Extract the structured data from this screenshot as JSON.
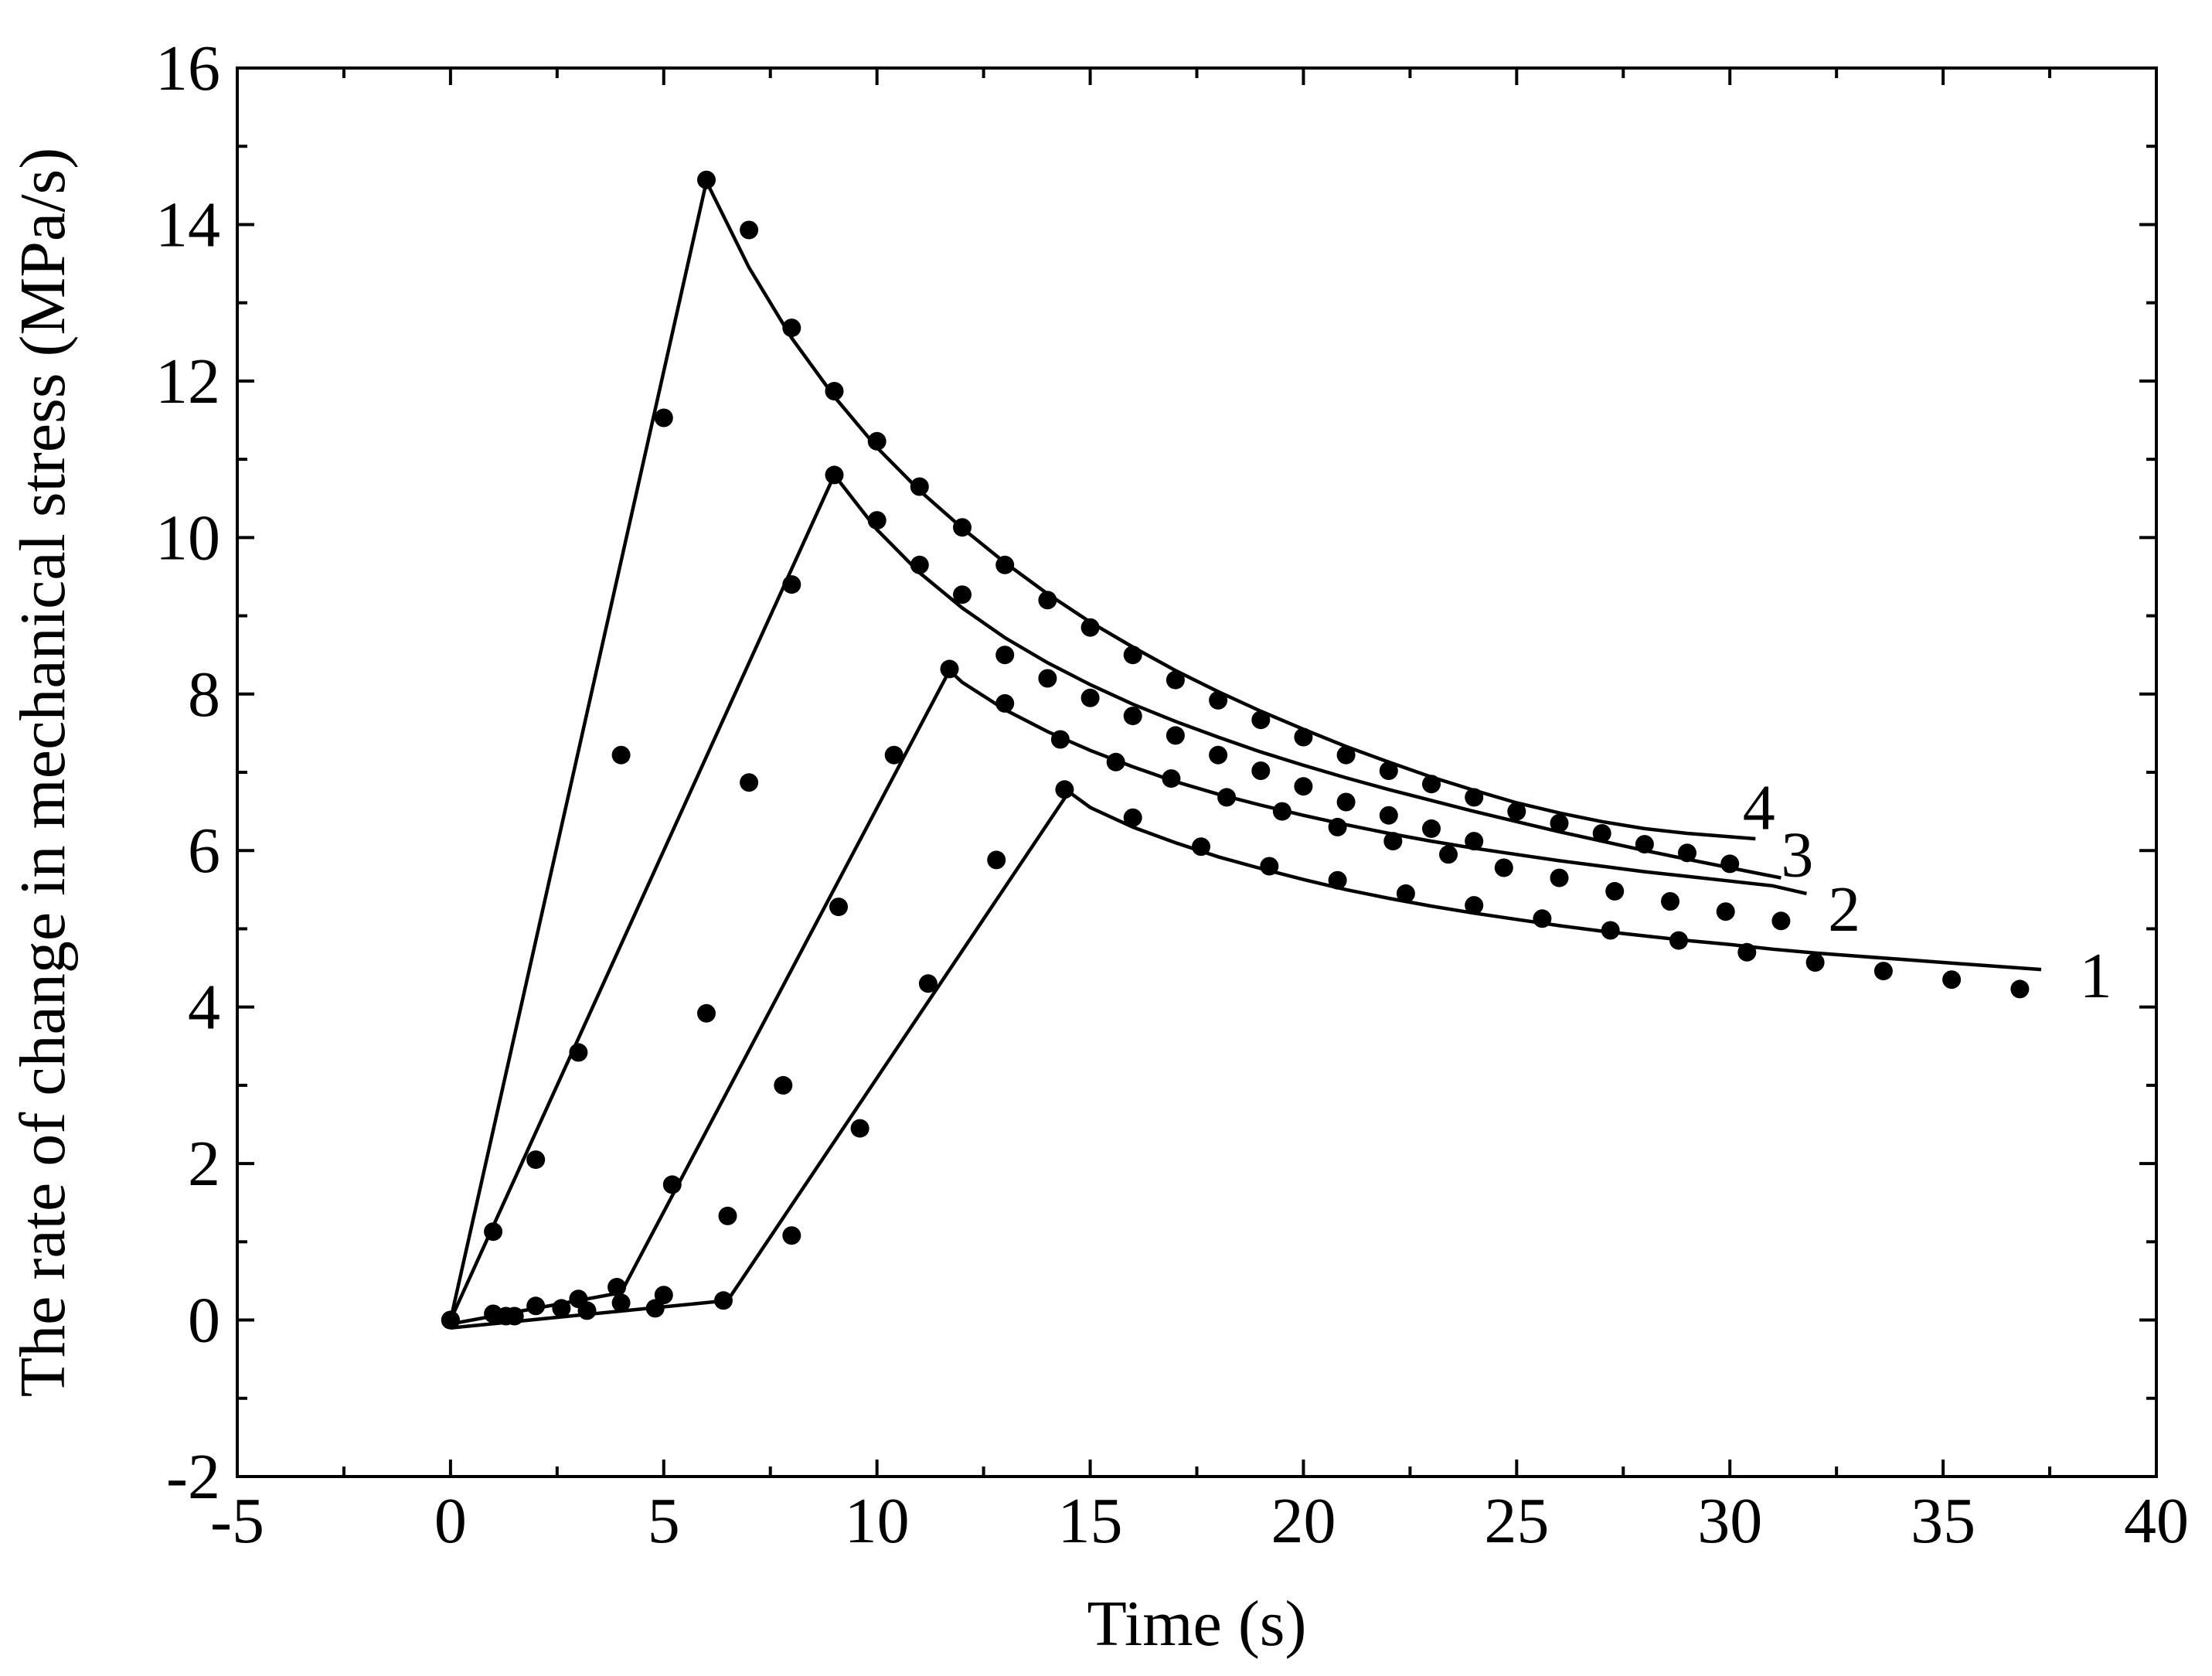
{
  "chart_data": {
    "type": "line",
    "title": "",
    "xlabel": "Time (s)",
    "ylabel": "The rate of change in mechanical stress (MPa/s)",
    "xlim": [
      -5,
      40
    ],
    "ylim": [
      -2,
      16
    ],
    "xticks": [
      "-5",
      "0",
      "5",
      "10",
      "15",
      "20",
      "25",
      "30",
      "35",
      "40"
    ],
    "yticks": [
      "-2",
      "0",
      "2",
      "4",
      "6",
      "8",
      "10",
      "12",
      "14",
      "16"
    ],
    "grid": false,
    "legend": "none",
    "series": [
      {
        "label": "1",
        "line": [
          [
            0,
            -0.1
          ],
          [
            6.5,
            0.25
          ],
          [
            14.5,
            6.75
          ],
          [
            15,
            6.55
          ],
          [
            16,
            6.3
          ],
          [
            17,
            6.1
          ],
          [
            18,
            5.92
          ],
          [
            19,
            5.77
          ],
          [
            20,
            5.63
          ],
          [
            21,
            5.5
          ],
          [
            22,
            5.39
          ],
          [
            23,
            5.29
          ],
          [
            24,
            5.2
          ],
          [
            25,
            5.12
          ],
          [
            26,
            5.04
          ],
          [
            27,
            4.97
          ],
          [
            28,
            4.91
          ],
          [
            29,
            4.85
          ],
          [
            30,
            4.8
          ],
          [
            31,
            4.74
          ],
          [
            32,
            4.69
          ],
          [
            33,
            4.65
          ],
          [
            34,
            4.61
          ],
          [
            35,
            4.57
          ],
          [
            36,
            4.53
          ],
          [
            37.3,
            4.48
          ]
        ],
        "points": [
          [
            0,
            0
          ],
          [
            1.5,
            0.05
          ],
          [
            3.2,
            0.12
          ],
          [
            4.8,
            0.15
          ],
          [
            6.4,
            0.25
          ],
          [
            8,
            1.08
          ],
          [
            9.6,
            2.45
          ],
          [
            11.2,
            4.3
          ],
          [
            12.8,
            5.88
          ],
          [
            14.4,
            6.78
          ],
          [
            16,
            6.42
          ],
          [
            17.6,
            6.05
          ],
          [
            19.2,
            5.8
          ],
          [
            20.8,
            5.62
          ],
          [
            22.4,
            5.45
          ],
          [
            24,
            5.3
          ],
          [
            25.6,
            5.13
          ],
          [
            27.2,
            4.98
          ],
          [
            28.8,
            4.85
          ],
          [
            30.4,
            4.7
          ],
          [
            32,
            4.57
          ],
          [
            33.6,
            4.46
          ],
          [
            35.2,
            4.35
          ],
          [
            36.8,
            4.23
          ]
        ],
        "label_pos": [
          38.2,
          4.4
        ]
      },
      {
        "label": "2",
        "line": [
          [
            0,
            -0.05
          ],
          [
            4,
            0.35
          ],
          [
            11.7,
            8.3
          ],
          [
            12,
            8.15
          ],
          [
            13,
            7.8
          ],
          [
            14,
            7.52
          ],
          [
            15,
            7.28
          ],
          [
            16,
            7.07
          ],
          [
            17,
            6.88
          ],
          [
            18,
            6.72
          ],
          [
            19,
            6.58
          ],
          [
            20,
            6.45
          ],
          [
            21,
            6.33
          ],
          [
            22,
            6.22
          ],
          [
            23,
            6.12
          ],
          [
            24,
            6.03
          ],
          [
            25,
            5.95
          ],
          [
            26,
            5.87
          ],
          [
            27,
            5.8
          ],
          [
            28,
            5.73
          ],
          [
            29,
            5.67
          ],
          [
            30,
            5.61
          ],
          [
            31,
            5.55
          ],
          [
            31.8,
            5.45
          ]
        ],
        "points": [
          [
            0,
            0
          ],
          [
            1.3,
            0.05
          ],
          [
            2.6,
            0.15
          ],
          [
            3.9,
            0.42
          ],
          [
            5.2,
            1.73
          ],
          [
            6.5,
            1.33
          ],
          [
            7.8,
            3.0
          ],
          [
            9.1,
            5.28
          ],
          [
            10.4,
            7.22
          ],
          [
            11.7,
            8.32
          ],
          [
            13,
            7.88
          ],
          [
            14.3,
            7.42
          ],
          [
            15.6,
            7.13
          ],
          [
            16.9,
            6.92
          ],
          [
            18.2,
            6.68
          ],
          [
            19.5,
            6.5
          ],
          [
            20.8,
            6.3
          ],
          [
            22.1,
            6.12
          ],
          [
            23.4,
            5.95
          ],
          [
            24.7,
            5.78
          ],
          [
            26,
            5.65
          ],
          [
            27.3,
            5.48
          ],
          [
            28.6,
            5.35
          ],
          [
            29.9,
            5.22
          ],
          [
            31.2,
            5.1
          ]
        ],
        "label_pos": [
          32.3,
          5.25
        ]
      },
      {
        "label": "3",
        "line": [
          [
            0,
            0
          ],
          [
            9,
            10.8
          ],
          [
            10,
            10.1
          ],
          [
            11,
            9.55
          ],
          [
            12,
            9.1
          ],
          [
            13,
            8.72
          ],
          [
            14,
            8.4
          ],
          [
            15,
            8.12
          ],
          [
            16,
            7.87
          ],
          [
            17,
            7.65
          ],
          [
            18,
            7.45
          ],
          [
            19,
            7.26
          ],
          [
            20,
            7.09
          ],
          [
            21,
            6.93
          ],
          [
            22,
            6.78
          ],
          [
            23,
            6.64
          ],
          [
            24,
            6.5
          ],
          [
            25,
            6.37
          ],
          [
            26,
            6.24
          ],
          [
            27,
            6.12
          ],
          [
            28,
            6.0
          ],
          [
            29,
            5.89
          ],
          [
            30,
            5.78
          ],
          [
            31.2,
            5.65
          ]
        ],
        "points": [
          [
            0,
            0
          ],
          [
            1,
            1.13
          ],
          [
            2,
            2.05
          ],
          [
            3,
            3.42
          ],
          [
            4,
            7.22
          ],
          [
            5,
            11.53
          ],
          [
            6,
            3.92
          ],
          [
            7,
            6.87
          ],
          [
            8,
            9.4
          ],
          [
            9,
            10.8
          ],
          [
            10,
            10.22
          ],
          [
            11,
            9.65
          ],
          [
            12,
            9.27
          ],
          [
            13,
            8.5
          ],
          [
            14,
            8.2
          ],
          [
            15,
            7.95
          ],
          [
            16,
            7.72
          ],
          [
            17,
            7.47
          ],
          [
            18,
            7.22
          ],
          [
            19,
            7.02
          ],
          [
            20,
            6.82
          ],
          [
            21,
            6.62
          ],
          [
            22,
            6.45
          ],
          [
            23,
            6.28
          ],
          [
            24,
            6.12
          ]
        ],
        "label_pos": [
          31.2,
          5.95
        ]
      },
      {
        "label": "4",
        "line": [
          [
            0,
            0
          ],
          [
            6,
            14.55
          ],
          [
            7,
            13.45
          ],
          [
            8,
            12.55
          ],
          [
            9,
            11.8
          ],
          [
            10,
            11.15
          ],
          [
            11,
            10.6
          ],
          [
            12,
            10.12
          ],
          [
            13,
            9.68
          ],
          [
            14,
            9.28
          ],
          [
            15,
            8.92
          ],
          [
            16,
            8.6
          ],
          [
            17,
            8.3
          ],
          [
            18,
            8.03
          ],
          [
            19,
            7.78
          ],
          [
            20,
            7.55
          ],
          [
            21,
            7.33
          ],
          [
            22,
            7.13
          ],
          [
            23,
            6.94
          ],
          [
            24,
            6.77
          ],
          [
            25,
            6.61
          ],
          [
            26,
            6.48
          ],
          [
            27,
            6.37
          ],
          [
            28,
            6.28
          ],
          [
            29,
            6.22
          ],
          [
            30.6,
            6.15
          ]
        ],
        "points": [
          [
            0,
            0
          ],
          [
            1,
            0.08
          ],
          [
            2,
            0.18
          ],
          [
            3,
            0.27
          ],
          [
            4,
            0.22
          ],
          [
            5,
            0.32
          ],
          [
            6,
            14.57
          ],
          [
            7,
            13.93
          ],
          [
            8,
            12.68
          ],
          [
            9,
            11.87
          ],
          [
            10,
            11.23
          ],
          [
            11,
            10.65
          ],
          [
            12,
            10.13
          ],
          [
            13,
            9.65
          ],
          [
            14,
            9.2
          ],
          [
            15,
            8.85
          ],
          [
            16,
            8.5
          ],
          [
            17,
            8.18
          ],
          [
            18,
            7.92
          ],
          [
            19,
            7.67
          ],
          [
            20,
            7.45
          ],
          [
            21,
            7.22
          ],
          [
            22,
            7.02
          ],
          [
            23,
            6.85
          ],
          [
            24,
            6.68
          ],
          [
            25,
            6.5
          ],
          [
            26,
            6.35
          ],
          [
            27,
            6.22
          ],
          [
            28,
            6.08
          ],
          [
            29,
            5.97
          ],
          [
            30,
            5.83
          ]
        ],
        "label_pos": [
          30.3,
          6.55
        ]
      }
    ]
  }
}
